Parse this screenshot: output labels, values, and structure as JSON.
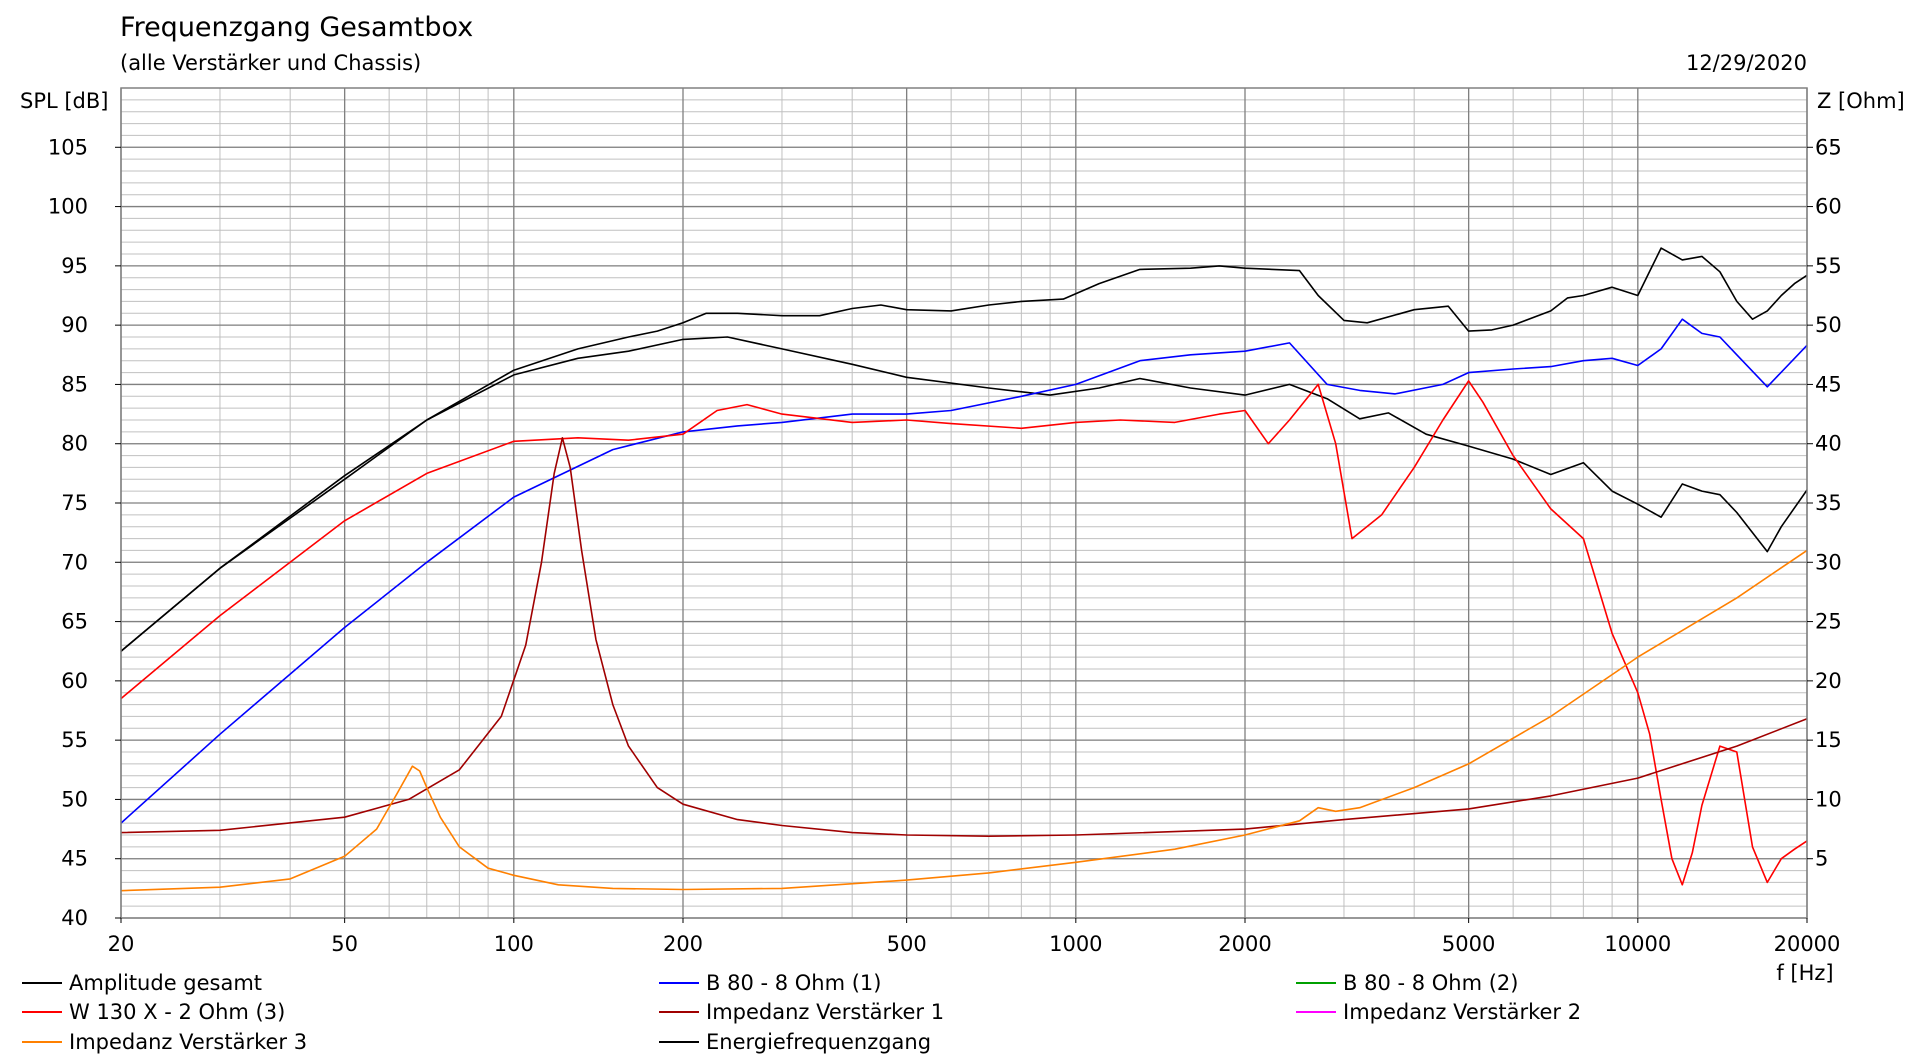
{
  "chart_data": {
    "type": "line",
    "title": "Frequenzgang Gesamtbox",
    "subtitle": "(alle Verstärker und Chassis)",
    "date": "12/29/2020",
    "ylabel_left": "SPL [dB]",
    "ylabel_right": "Z [Ohm]",
    "xlabel": "f [Hz]",
    "x_scale": "log",
    "xlim": [
      20,
      20000
    ],
    "ylim_left": [
      40,
      110
    ],
    "ylim_right": [
      0,
      70
    ],
    "x_ticks": [
      20,
      50,
      100,
      200,
      500,
      1000,
      2000,
      5000,
      10000,
      20000
    ],
    "x_tick_labels": [
      "20",
      "50",
      "100",
      "200",
      "500",
      "1000",
      "2000",
      "5000",
      "10000",
      "20000"
    ],
    "y_ticks_left": [
      40,
      45,
      50,
      55,
      60,
      65,
      70,
      75,
      80,
      85,
      90,
      95,
      100,
      105
    ],
    "y_tick_labels_left": [
      "40",
      "45",
      "50",
      "55",
      "60",
      "65",
      "70",
      "75",
      "80",
      "85",
      "90",
      "95",
      "100",
      "105"
    ],
    "y_ticks_right": [
      5,
      10,
      15,
      20,
      25,
      30,
      35,
      40,
      45,
      50,
      55,
      60,
      65
    ],
    "y_tick_labels_right": [
      "5",
      "10",
      "15",
      "20",
      "25",
      "30",
      "35",
      "40",
      "45",
      "50",
      "55",
      "60",
      "65"
    ],
    "grid": true,
    "legend_placement": "bottom",
    "colors": {
      "background": "#ffffff",
      "grid_minor": "#c0c0c0",
      "grid_major": "#808080",
      "frame": "#808080"
    },
    "series": [
      {
        "name": "Amplitude gesamt",
        "color": "#000000",
        "axis": "left",
        "legend": true,
        "x": [
          20,
          30,
          50,
          70,
          100,
          130,
          160,
          200,
          240,
          300,
          400,
          500,
          700,
          900,
          1100,
          1300,
          1600,
          2000,
          2400,
          2800,
          3200,
          3600,
          4200,
          5000,
          6000,
          7000,
          8000,
          9000,
          10000,
          11000,
          12000,
          13000,
          14000,
          15000,
          17000,
          18000,
          20000
        ],
        "y": [
          62.5,
          69.5,
          77.0,
          82.0,
          85.8,
          87.2,
          87.8,
          88.8,
          89.0,
          88.0,
          86.7,
          85.6,
          84.7,
          84.1,
          84.7,
          85.5,
          84.7,
          84.1,
          85.0,
          83.8,
          82.1,
          82.6,
          80.8,
          79.8,
          78.7,
          77.4,
          78.4,
          76.0,
          74.9,
          73.8,
          76.6,
          76.0,
          75.7,
          74.2,
          70.9,
          73.0,
          76.1
        ]
      },
      {
        "name": "B 80 - 8 Ohm (1)",
        "color": "#0000ff",
        "axis": "left",
        "legend": true,
        "x": [
          20,
          30,
          50,
          70,
          100,
          150,
          200,
          250,
          300,
          400,
          500,
          600,
          800,
          1000,
          1300,
          1600,
          2000,
          2400,
          2800,
          3200,
          3700,
          4500,
          5000,
          6000,
          7000,
          8000,
          9000,
          10000,
          11000,
          12000,
          13000,
          14000,
          15000,
          17000,
          20000
        ],
        "y": [
          48.0,
          55.5,
          64.5,
          70.0,
          75.5,
          79.5,
          81.0,
          81.5,
          81.8,
          82.5,
          82.5,
          82.8,
          84.0,
          85.0,
          87.0,
          87.5,
          87.8,
          88.5,
          85.0,
          84.5,
          84.2,
          85.0,
          86.0,
          86.3,
          86.5,
          87.0,
          87.2,
          86.6,
          88.0,
          90.5,
          89.3,
          89.0,
          87.5,
          84.8,
          88.3
        ]
      },
      {
        "name": "B 80 - 8 Ohm (2)",
        "color": "#00a000",
        "axis": "left",
        "legend": true,
        "x": [],
        "y": []
      },
      {
        "name": "W 130 X - 2 Ohm (3)",
        "color": "#ff0000",
        "axis": "left",
        "legend": true,
        "x": [
          20,
          30,
          50,
          70,
          100,
          130,
          160,
          200,
          230,
          260,
          300,
          400,
          500,
          600,
          800,
          1000,
          1200,
          1500,
          1800,
          2000,
          2200,
          2400,
          2700,
          2900,
          3100,
          3500,
          4000,
          4500,
          5000,
          5300,
          6000,
          7000,
          8000,
          9000,
          10000,
          10500,
          11000,
          11500,
          12000,
          12500,
          13000,
          14000,
          15000,
          16000,
          17000,
          18000,
          19000,
          20000
        ],
        "y": [
          58.5,
          65.5,
          73.5,
          77.5,
          80.2,
          80.5,
          80.3,
          80.8,
          82.8,
          83.3,
          82.5,
          81.8,
          82.0,
          81.7,
          81.3,
          81.8,
          82.0,
          81.8,
          82.5,
          82.8,
          80.0,
          82.0,
          85.0,
          80.0,
          72.0,
          74.0,
          78.0,
          82.0,
          85.3,
          83.5,
          79.0,
          74.5,
          72.0,
          64.0,
          59.0,
          55.5,
          50.0,
          45.0,
          42.8,
          45.5,
          49.5,
          54.5,
          54.0,
          46.0,
          43.0,
          45.0,
          45.8,
          46.5
        ]
      },
      {
        "name": "Impedanz Verstärker 1",
        "color": "#a00000",
        "axis": "right",
        "legend": true,
        "x": [
          20,
          30,
          50,
          65,
          80,
          95,
          105,
          112,
          118,
          122,
          126,
          132,
          140,
          150,
          160,
          180,
          200,
          250,
          300,
          400,
          500,
          700,
          1000,
          2000,
          3000,
          5000,
          7000,
          10000,
          15000,
          20000
        ],
        "y": [
          7.2,
          7.4,
          8.5,
          10.0,
          12.5,
          17.0,
          23.0,
          30.0,
          37.5,
          40.5,
          38.0,
          31.0,
          23.5,
          18.0,
          14.5,
          11.0,
          9.6,
          8.3,
          7.8,
          7.2,
          7.0,
          6.9,
          7.0,
          7.5,
          8.3,
          9.2,
          10.3,
          11.8,
          14.5,
          16.8
        ]
      },
      {
        "name": "Impedanz Verstärker 2",
        "color": "#ff00ff",
        "axis": "right",
        "legend": true,
        "x": [],
        "y": []
      },
      {
        "name": "Impedanz Verstärker 3",
        "color": "#ff8000",
        "axis": "right",
        "legend": true,
        "x": [
          20,
          30,
          40,
          50,
          57,
          62,
          66,
          68,
          70,
          74,
          80,
          90,
          100,
          120,
          150,
          200,
          300,
          500,
          700,
          1000,
          1500,
          2000,
          2500,
          2700,
          2900,
          3200,
          4000,
          5000,
          7000,
          10000,
          15000,
          20000
        ],
        "y": [
          2.3,
          2.6,
          3.3,
          5.2,
          7.5,
          10.5,
          12.8,
          12.4,
          11.0,
          8.5,
          6.0,
          4.2,
          3.6,
          2.8,
          2.5,
          2.4,
          2.5,
          3.2,
          3.8,
          4.7,
          5.8,
          7.0,
          8.2,
          9.3,
          9.0,
          9.3,
          11.0,
          13.0,
          17.0,
          22.0,
          27.0,
          31.0
        ]
      },
      {
        "name": "Energiefrequenzgang",
        "color": "#000000",
        "axis": "left",
        "legend": true,
        "x": [
          20,
          30,
          50,
          70,
          100,
          130,
          160,
          180,
          200,
          220,
          250,
          300,
          350,
          400,
          450,
          500,
          600,
          700,
          800,
          950,
          1100,
          1300,
          1600,
          1800,
          2000,
          2500,
          2700,
          3000,
          3300,
          4000,
          4600,
          5000,
          5500,
          6000,
          7000,
          7500,
          8000,
          9000,
          10000,
          11000,
          12000,
          13000,
          14000,
          15000,
          16000,
          17000,
          18000,
          19000,
          20000
        ],
        "y": [
          62.5,
          69.5,
          77.3,
          82.0,
          86.2,
          88.0,
          89.0,
          89.5,
          90.2,
          91.0,
          91.0,
          90.8,
          90.8,
          91.4,
          91.7,
          91.3,
          91.2,
          91.7,
          92.0,
          92.2,
          93.5,
          94.7,
          94.8,
          95.0,
          94.8,
          94.6,
          92.5,
          90.4,
          90.2,
          91.3,
          91.6,
          89.5,
          89.6,
          90.0,
          91.2,
          92.3,
          92.5,
          93.2,
          92.5,
          96.5,
          95.5,
          95.8,
          94.5,
          92.0,
          90.5,
          91.2,
          92.5,
          93.5,
          94.2
        ]
      }
    ]
  }
}
